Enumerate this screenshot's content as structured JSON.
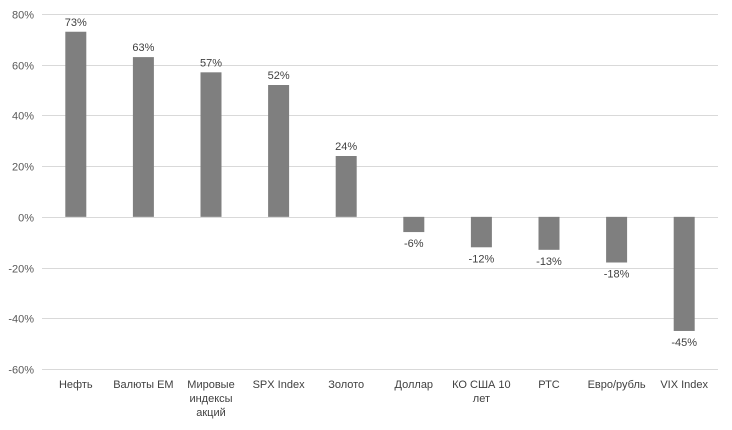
{
  "chart_data": {
    "type": "bar",
    "categories": [
      [
        "Нефть"
      ],
      [
        "Валюты EM"
      ],
      [
        "Мировые",
        "индексы",
        "акций"
      ],
      [
        "SPX Index"
      ],
      [
        "Золото"
      ],
      [
        "Доллар"
      ],
      [
        "КО США 10",
        "лет"
      ],
      [
        "РТС"
      ],
      [
        "Евро/рубль"
      ],
      [
        "VIX Index"
      ]
    ],
    "values": [
      73,
      63,
      57,
      52,
      24,
      -6,
      -12,
      -13,
      -18,
      -45
    ],
    "data_labels": [
      "73%",
      "63%",
      "57%",
      "52%",
      "24%",
      "-6%",
      "-12%",
      "-13%",
      "-18%",
      "-45%"
    ],
    "ylim": [
      -60,
      80
    ],
    "yticks": [
      80,
      60,
      40,
      20,
      0,
      -20,
      -40,
      -60
    ],
    "ytick_labels": [
      "80%",
      "60%",
      "40%",
      "20%",
      "0%",
      "-20%",
      "-40%",
      "-60%"
    ],
    "grid": true,
    "bar_color": "#7f7f7f",
    "grid_color": "#d9d9d9"
  }
}
